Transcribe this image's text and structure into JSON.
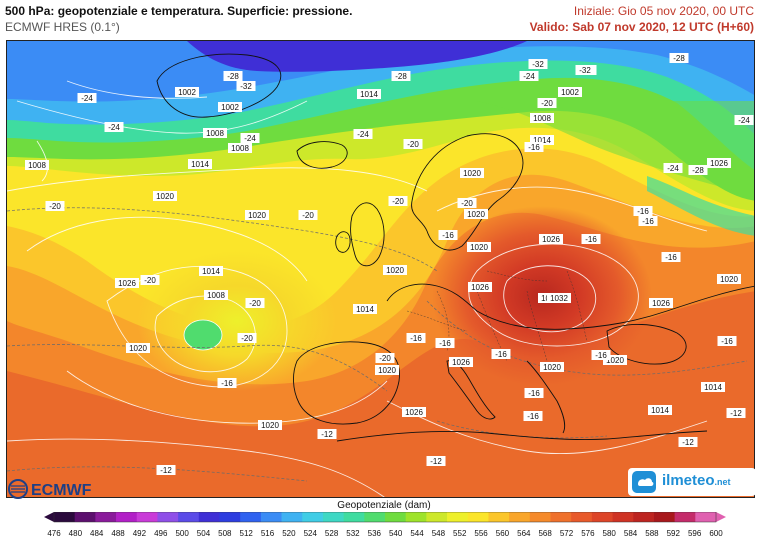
{
  "header": {
    "title": "500 hPa: geopotenziale e temperatura. Superficie: pressione.",
    "model": "ECMWF HRES (0.1°)",
    "init": "Iniziale: Gio 05 nov 2020, 00 UTC",
    "valid": "Valido: Sab 07 nov 2020, 12 UTC (H+60)"
  },
  "map": {
    "pressure_labels": [
      "1002",
      "1002",
      "1008",
      "1008",
      "1014",
      "1014",
      "1002",
      "1008",
      "1014",
      "1008",
      "1020",
      "1020",
      "1020",
      "1020",
      "1014",
      "1008",
      "1026",
      "1020",
      "1020",
      "1014",
      "1020",
      "1020",
      "1026",
      "1026",
      "1032",
      "1026",
      "1032",
      "1020",
      "1026",
      "1026",
      "1026",
      "1020",
      "1020",
      "1014",
      "1014",
      "1020",
      "1026",
      "1020",
      "1026"
    ],
    "temp_labels": [
      "-28",
      "-32",
      "-24",
      "-28",
      "-32",
      "-24",
      "-24",
      "-24",
      "-28",
      "-28",
      "-24",
      "-32",
      "-20",
      "-20",
      "-16",
      "-20",
      "-20",
      "-20",
      "-20",
      "-20",
      "-20",
      "-16",
      "-16",
      "-20",
      "-16",
      "-16",
      "-16",
      "-16",
      "-20",
      "-16",
      "-16",
      "-16",
      "-12",
      "-12",
      "-16",
      "-12",
      "-16",
      "-12",
      "-12",
      "-16",
      "-16",
      "-24",
      "-28",
      "-24",
      "-20",
      "-12"
    ]
  },
  "legend": {
    "title": "Geopotenziale (dam)",
    "ticks": [
      "476",
      "480",
      "484",
      "488",
      "492",
      "496",
      "500",
      "504",
      "508",
      "512",
      "516",
      "520",
      "524",
      "528",
      "532",
      "536",
      "540",
      "544",
      "548",
      "552",
      "556",
      "560",
      "564",
      "568",
      "572",
      "576",
      "580",
      "584",
      "588",
      "592",
      "596",
      "600"
    ],
    "colors": [
      "#2b0a3d",
      "#5c0f6e",
      "#8a1a9b",
      "#b21fc7",
      "#c93bd8",
      "#8f4fe8",
      "#5b4be8",
      "#3f2fd6",
      "#2d3de0",
      "#2f62f0",
      "#3b8cf5",
      "#3fb2f2",
      "#40cde6",
      "#3ed8c4",
      "#3fdca0",
      "#50dc6e",
      "#6fdc3f",
      "#9ee32a",
      "#cde82a",
      "#eef02b",
      "#fbe52a",
      "#fbc62b",
      "#f9a62b",
      "#f58a2b",
      "#ef712c",
      "#e85a2b",
      "#dd4528",
      "#cf3324",
      "#bd2420",
      "#a8181c",
      "#c42b6a",
      "#e060b0"
    ]
  },
  "logos": {
    "ecmwf": "ECMWF",
    "ilmeteo_main": "ilmeteo",
    "ilmeteo_suffix": ".net"
  }
}
